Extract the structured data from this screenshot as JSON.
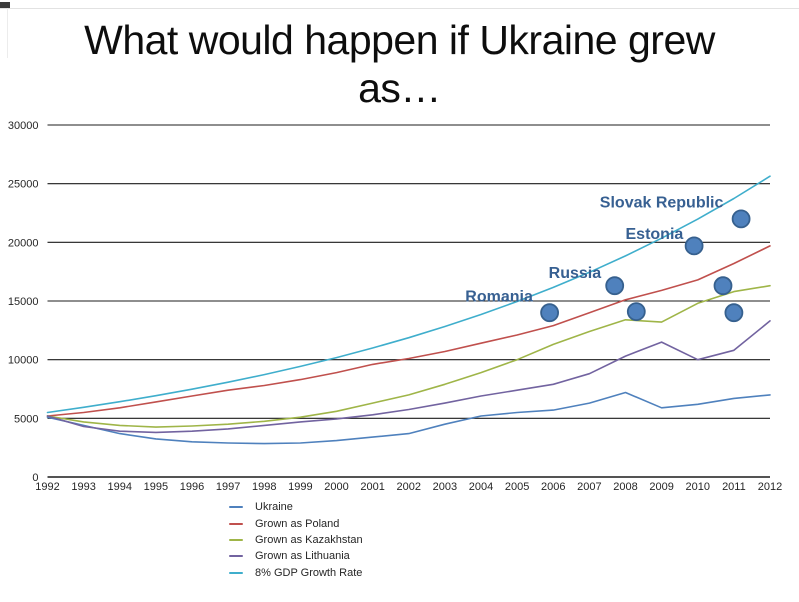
{
  "title": {
    "line1": "What would happen if Ukraine grew",
    "line2": "as…"
  },
  "chart_data": {
    "type": "line",
    "title": "What would happen if Ukraine grew as…",
    "xlabel": "",
    "ylabel": "",
    "x": [
      1992,
      1993,
      1994,
      1995,
      1996,
      1997,
      1998,
      1999,
      2000,
      2001,
      2002,
      2003,
      2004,
      2005,
      2006,
      2007,
      2008,
      2009,
      2010,
      2011,
      2012
    ],
    "xlim": [
      1992,
      2012
    ],
    "ylim": [
      0,
      30000
    ],
    "yticks": [
      0,
      5000,
      10000,
      15000,
      20000,
      25000,
      30000
    ],
    "grid": "horizontal",
    "gridline_color": "#1c1c1c",
    "legend_position": "bottom-left",
    "series": [
      {
        "name": "Ukraine",
        "color": "#4F81BD",
        "values": [
          5100,
          4400,
          3700,
          3250,
          3000,
          2900,
          2850,
          2900,
          3100,
          3400,
          3700,
          4500,
          5200,
          5500,
          5700,
          6300,
          7200,
          5900,
          6200,
          6700,
          7000
        ]
      },
      {
        "name": "Grown as Poland",
        "color": "#C0504D",
        "values": [
          5200,
          5500,
          5900,
          6400,
          6900,
          7400,
          7800,
          8300,
          8900,
          9600,
          10100,
          10700,
          11400,
          12100,
          12900,
          14000,
          15100,
          15900,
          16800,
          18200,
          19700
        ]
      },
      {
        "name": "Grown as Kazakhstan",
        "color": "#9FB548",
        "values": [
          5200,
          4700,
          4400,
          4250,
          4350,
          4500,
          4750,
          5100,
          5600,
          6300,
          7000,
          7900,
          8900,
          10000,
          11300,
          12400,
          13400,
          13200,
          14800,
          15800,
          16300
        ]
      },
      {
        "name": "Grown as Lithuania",
        "color": "#7263A0",
        "values": [
          5200,
          4300,
          3900,
          3800,
          3900,
          4100,
          4400,
          4700,
          4950,
          5300,
          5750,
          6300,
          6900,
          7400,
          7900,
          8800,
          10300,
          11500,
          10000,
          10800,
          13300
        ]
      },
      {
        "name": "8% GDP Growth Rate",
        "color": "#3FAECC",
        "values": [
          5500,
          5940,
          6415,
          6928,
          7483,
          8081,
          8728,
          9426,
          10180,
          10995,
          11874,
          12824,
          13850,
          14958,
          16155,
          17447,
          18843,
          20350,
          21978,
          23737,
          25636
        ]
      }
    ],
    "scatter": {
      "name": "country-gdp-markers",
      "fill": "#4F81BD",
      "stroke": "#36608E",
      "points": [
        {
          "x": 2005.9,
          "y": 14000
        },
        {
          "x": 2007.7,
          "y": 16300
        },
        {
          "x": 2008.3,
          "y": 14100
        },
        {
          "x": 2009.9,
          "y": 19700
        },
        {
          "x": 2010.7,
          "y": 16300
        },
        {
          "x": 2011.0,
          "y": 14000
        },
        {
          "x": 2011.2,
          "y": 22000
        }
      ]
    },
    "annotations": [
      {
        "text": "Romania",
        "x": 2004.5,
        "y": 15400
      },
      {
        "text": "Russia",
        "x": 2006.6,
        "y": 17400
      },
      {
        "text": "Estonia",
        "x": 2008.8,
        "y": 20700
      },
      {
        "text": "Slovak Republic",
        "x": 2009.0,
        "y": 23400
      }
    ],
    "annotation_color": "#376092"
  }
}
